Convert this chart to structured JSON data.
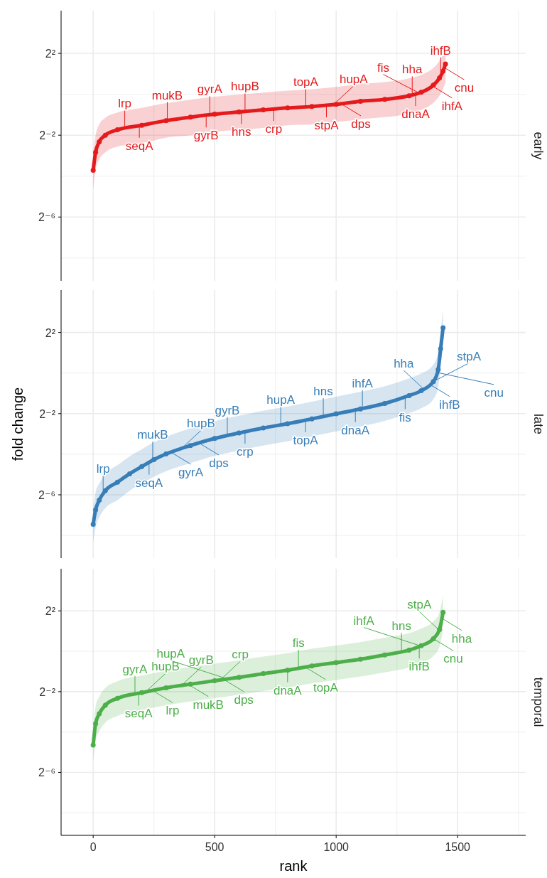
{
  "chart_data": [
    {
      "type": "line",
      "title": "early",
      "marker": "circle",
      "grid": true,
      "tick_labels": "y",
      "xlim": [
        -132,
        1780
      ],
      "ylim": [
        0.0018,
        17
      ],
      "log": "y",
      "xticks": [
        0,
        500,
        1000,
        1500,
        {
          "value": 250,
          "label": null
        },
        {
          "value": 750,
          "label": null
        },
        {
          "value": 1250,
          "label": null
        },
        {
          "value": 1750,
          "label": null
        }
      ],
      "yticks": [
        {
          "value": 4,
          "label": "2²"
        },
        {
          "value": 0.25,
          "label": "2⁻²"
        },
        {
          "value": 0.015625,
          "label": "2⁻⁶"
        },
        {
          "value": 1,
          "label": null
        },
        {
          "value": 0.0625,
          "label": null
        },
        {
          "value": 0.00390625,
          "label": null
        }
      ],
      "series": [
        {
          "color": "#e41a1c",
          "x": [
            0,
            10,
            25,
            50,
            100,
            200,
            300,
            400,
            500,
            600,
            700,
            800,
            900,
            1000,
            1100,
            1200,
            1300,
            1350,
            1400,
            1425,
            1440,
            1450
          ],
          "values": [
            0.076,
            0.14,
            0.2,
            0.25,
            0.3,
            0.35,
            0.41,
            0.46,
            0.51,
            0.55,
            0.59,
            0.63,
            0.66,
            0.71,
            0.79,
            0.84,
            0.95,
            1.07,
            1.36,
            1.73,
            2.19,
            2.79
          ],
          "lower": [
            0.04,
            0.077,
            0.11,
            0.14,
            0.17,
            0.19,
            0.23,
            0.25,
            0.28,
            0.3,
            0.32,
            0.35,
            0.36,
            0.39,
            0.43,
            0.46,
            0.52,
            0.59,
            0.75,
            0.95,
            1.2,
            1.5
          ],
          "upper": [
            0.14,
            0.25,
            0.36,
            0.45,
            0.54,
            0.63,
            0.74,
            0.83,
            0.92,
            0.99,
            1.06,
            1.13,
            1.19,
            1.28,
            1.42,
            1.51,
            1.71,
            1.93,
            2.45,
            3.1,
            3.9,
            5
          ]
        }
      ],
      "annotations": [
        {
          "text": "lrp",
          "x": 130,
          "y": 0.31
        },
        {
          "text": "seqA",
          "x": 190,
          "y": 0.345
        },
        {
          "text": "mukB",
          "x": 305,
          "y": 0.41
        },
        {
          "text": "gyrB",
          "x": 465,
          "y": 0.49
        },
        {
          "text": "gyrA",
          "x": 480,
          "y": 0.5
        },
        {
          "text": "hns",
          "x": 610,
          "y": 0.55
        },
        {
          "text": "hupB",
          "x": 625,
          "y": 0.56
        },
        {
          "text": "crp",
          "x": 743,
          "y": 0.61
        },
        {
          "text": "topA",
          "x": 875,
          "y": 0.65
        },
        {
          "text": "stpA",
          "x": 960,
          "y": 0.69
        },
        {
          "text": "hupA",
          "x": 990,
          "y": 0.71
        },
        {
          "text": "dps",
          "x": 1020,
          "y": 0.725
        },
        {
          "text": "hha",
          "x": 1313,
          "y": 0.98
        },
        {
          "text": "dnaA",
          "x": 1327,
          "y": 1.01
        },
        {
          "text": "fis",
          "x": 1340,
          "y": 1.05
        },
        {
          "text": "ihfA",
          "x": 1395,
          "y": 1.33
        },
        {
          "text": "ihfB",
          "x": 1430,
          "y": 1.87
        },
        {
          "text": "cnu",
          "x": 1445,
          "y": 2.47
        }
      ]
    },
    {
      "type": "line",
      "title": "late",
      "ylabel": "fold change",
      "marker": "circle",
      "grid": true,
      "tick_labels": "y",
      "xlim": [
        -132,
        1780
      ],
      "ylim": [
        0.0018,
        17
      ],
      "log": "y",
      "xticks": [
        0,
        500,
        1000,
        1500,
        {
          "value": 250,
          "label": null
        },
        {
          "value": 750,
          "label": null
        },
        {
          "value": 1250,
          "label": null
        },
        {
          "value": 1750,
          "label": null
        }
      ],
      "yticks": [
        {
          "value": 4,
          "label": "2²"
        },
        {
          "value": 0.25,
          "label": "2⁻²"
        },
        {
          "value": 0.015625,
          "label": "2⁻⁶"
        },
        {
          "value": 1,
          "label": null
        },
        {
          "value": 0.0625,
          "label": null
        },
        {
          "value": 0.00390625,
          "label": null
        }
      ],
      "series": [
        {
          "color": "#377eb8",
          "x": [
            0,
            10,
            25,
            50,
            100,
            150,
            200,
            250,
            300,
            400,
            500,
            600,
            700,
            800,
            900,
            1000,
            1100,
            1200,
            1300,
            1350,
            1400,
            1420,
            1430,
            1440
          ],
          "values": [
            0.0057,
            0.0093,
            0.013,
            0.018,
            0.024,
            0.032,
            0.041,
            0.052,
            0.063,
            0.084,
            0.107,
            0.129,
            0.153,
            0.177,
            0.209,
            0.248,
            0.293,
            0.354,
            0.463,
            0.547,
            0.747,
            1.13,
            2.3,
            4.7
          ],
          "lower": [
            0.0031,
            0.0051,
            0.0072,
            0.0099,
            0.013,
            0.018,
            0.023,
            0.029,
            0.035,
            0.046,
            0.059,
            0.071,
            0.084,
            0.097,
            0.115,
            0.136,
            0.161,
            0.195,
            0.255,
            0.3,
            0.41,
            0.62,
            1.27,
            2.6
          ],
          "upper": [
            0.01,
            0.017,
            0.023,
            0.032,
            0.043,
            0.058,
            0.074,
            0.094,
            0.113,
            0.151,
            0.193,
            0.232,
            0.275,
            0.319,
            0.376,
            0.446,
            0.527,
            0.637,
            0.833,
            0.985,
            1.34,
            2.03,
            4.1,
            8.5
          ]
        }
      ],
      "annotations": [
        {
          "text": "lrp",
          "x": 41,
          "y": 0.016
        },
        {
          "text": "seqA",
          "x": 230,
          "y": 0.047
        },
        {
          "text": "mukB",
          "x": 245,
          "y": 0.051
        },
        {
          "text": "gyrA",
          "x": 320,
          "y": 0.067
        },
        {
          "text": "hupB",
          "x": 362,
          "y": 0.075
        },
        {
          "text": "dps",
          "x": 435,
          "y": 0.092
        },
        {
          "text": "gyrB",
          "x": 552,
          "y": 0.118
        },
        {
          "text": "crp",
          "x": 625,
          "y": 0.135
        },
        {
          "text": "hupA",
          "x": 772,
          "y": 0.17
        },
        {
          "text": "topA",
          "x": 874,
          "y": 0.2
        },
        {
          "text": "hns",
          "x": 947,
          "y": 0.226
        },
        {
          "text": "dnaA",
          "x": 1079,
          "y": 0.283
        },
        {
          "text": "ihfA",
          "x": 1108,
          "y": 0.297
        },
        {
          "text": "fis",
          "x": 1284,
          "y": 0.44
        },
        {
          "text": "hha",
          "x": 1360,
          "y": 0.58
        },
        {
          "text": "ihfB",
          "x": 1385,
          "y": 0.68
        },
        {
          "text": "stpA",
          "x": 1400,
          "y": 0.747
        },
        {
          "text": "cnu",
          "x": 1415,
          "y": 1.02
        }
      ]
    },
    {
      "type": "line",
      "title": "temporal",
      "xlabel": "rank",
      "marker": "circle",
      "grid": true,
      "xlim": [
        -132,
        1780
      ],
      "ylim": [
        0.0018,
        17
      ],
      "log": "y",
      "xticks": [
        0,
        500,
        1000,
        1500,
        {
          "value": 250,
          "label": null
        },
        {
          "value": 750,
          "label": null
        },
        {
          "value": 1250,
          "label": null
        },
        {
          "value": 1750,
          "label": null
        }
      ],
      "yticks": [
        {
          "value": 4,
          "label": "2²"
        },
        {
          "value": 0.25,
          "label": "2⁻²"
        },
        {
          "value": 0.015625,
          "label": "2⁻⁶"
        },
        {
          "value": 1,
          "label": null
        },
        {
          "value": 0.0625,
          "label": null
        },
        {
          "value": 0.00390625,
          "label": null
        }
      ],
      "series": [
        {
          "color": "#4daf4a",
          "x": [
            0,
            10,
            25,
            50,
            100,
            200,
            300,
            400,
            500,
            600,
            700,
            800,
            900,
            1000,
            1100,
            1200,
            1300,
            1350,
            1400,
            1425,
            1440
          ],
          "values": [
            0.04,
            0.083,
            0.117,
            0.157,
            0.199,
            0.241,
            0.285,
            0.323,
            0.363,
            0.409,
            0.463,
            0.521,
            0.603,
            0.678,
            0.763,
            0.883,
            1.04,
            1.21,
            1.54,
            2.1,
            3.81
          ],
          "lower": [
            0.022,
            0.046,
            0.064,
            0.086,
            0.109,
            0.133,
            0.157,
            0.178,
            0.2,
            0.225,
            0.255,
            0.287,
            0.332,
            0.373,
            0.42,
            0.486,
            0.57,
            0.67,
            0.85,
            1.16,
            2.1
          ],
          "upper": [
            0.072,
            0.15,
            0.21,
            0.283,
            0.358,
            0.434,
            0.513,
            0.581,
            0.653,
            0.736,
            0.833,
            0.938,
            1.09,
            1.22,
            1.37,
            1.59,
            1.87,
            2.18,
            2.77,
            3.78,
            6.9
          ]
        }
      ],
      "annotations": [
        {
          "text": "gyrA",
          "x": 172,
          "y": 0.228
        },
        {
          "text": "seqA",
          "x": 187,
          "y": 0.235
        },
        {
          "text": "hupB",
          "x": 216,
          "y": 0.248
        },
        {
          "text": "lrp",
          "x": 245,
          "y": 0.259
        },
        {
          "text": "gyrB",
          "x": 363,
          "y": 0.308
        },
        {
          "text": "mukB",
          "x": 392,
          "y": 0.32
        },
        {
          "text": "crp",
          "x": 523,
          "y": 0.373
        },
        {
          "text": "dps",
          "x": 538,
          "y": 0.379
        },
        {
          "text": "hupA",
          "x": 553,
          "y": 0.386
        },
        {
          "text": "dnaA",
          "x": 800,
          "y": 0.521
        },
        {
          "text": "fis",
          "x": 845,
          "y": 0.556
        },
        {
          "text": "topA",
          "x": 875,
          "y": 0.574
        },
        {
          "text": "hns",
          "x": 1269,
          "y": 0.99
        },
        {
          "text": "ihfB",
          "x": 1342,
          "y": 1.18
        },
        {
          "text": "ihfA",
          "x": 1348,
          "y": 1.2
        },
        {
          "text": "cnu",
          "x": 1400,
          "y": 1.54
        },
        {
          "text": "stpA",
          "x": 1424,
          "y": 2.07
        },
        {
          "text": "hha",
          "x": 1435,
          "y": 3.1
        }
      ]
    }
  ]
}
